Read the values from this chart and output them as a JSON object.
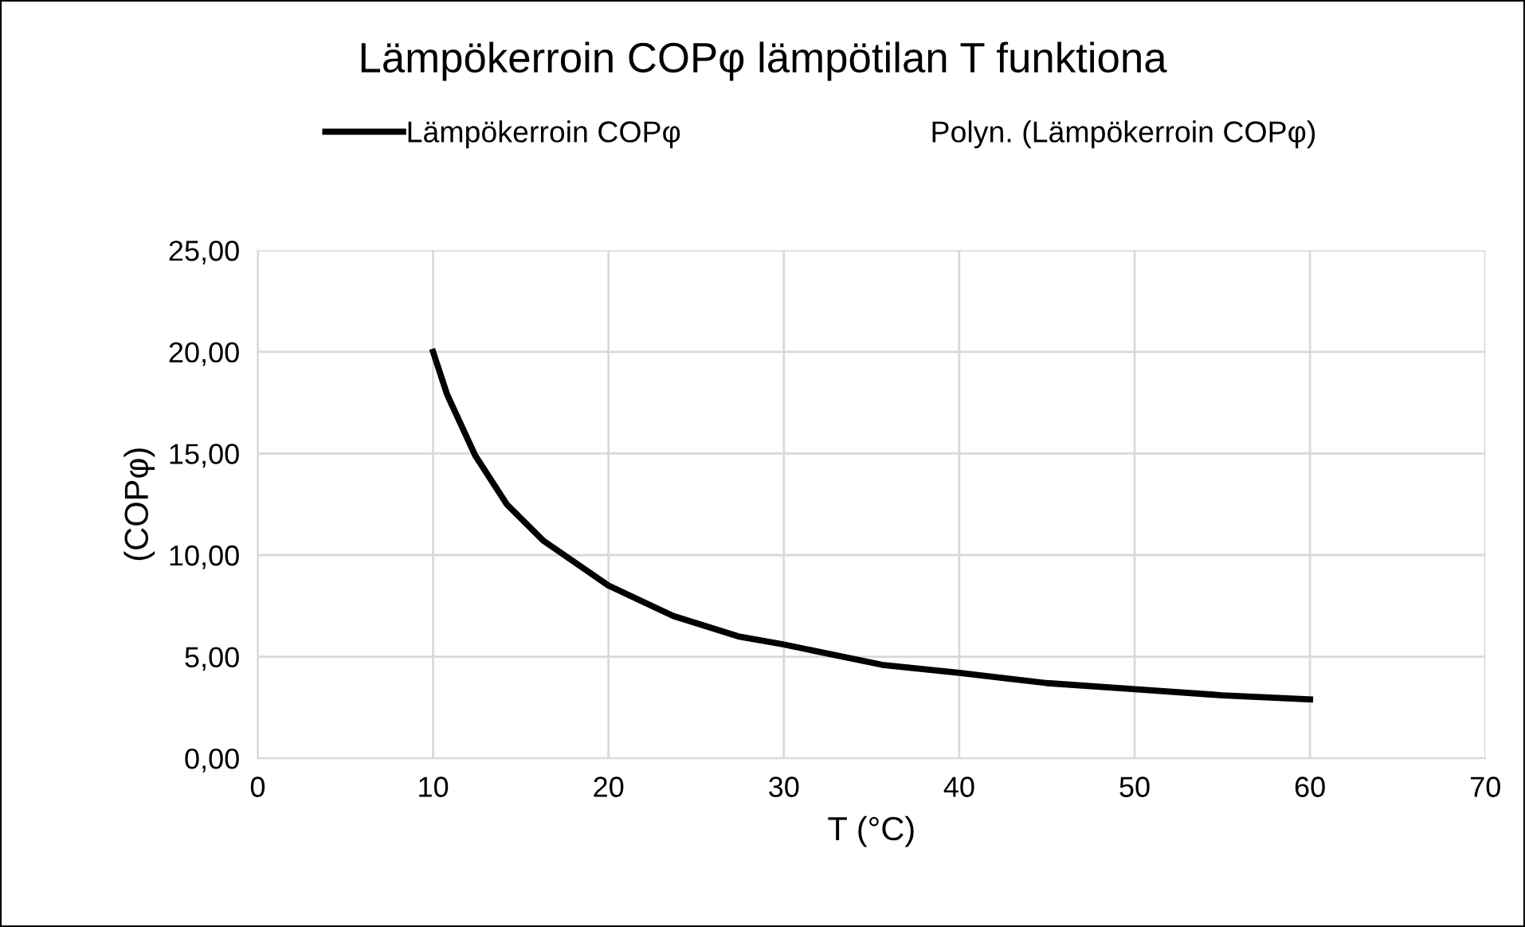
{
  "chart_data": {
    "type": "line",
    "title": "Lämpökerroin COPφ lämpötilan T funktiona",
    "xlabel": "T (°C)",
    "ylabel": "(COPφ)",
    "series": [
      {
        "name": "Lämpökerroin COPφ",
        "color": "#000000",
        "x": [
          10,
          10.8,
          12.4,
          14.2,
          16.3,
          20,
          23.7,
          27.4,
          30,
          35.6,
          40,
          45,
          50,
          55,
          60
        ],
        "values": [
          20,
          17.9,
          14.9,
          12.5,
          10.7,
          8.5,
          7.0,
          6.0,
          5.6,
          4.6,
          4.2,
          3.7,
          3.4,
          3.1,
          2.9
        ]
      }
    ],
    "annotations": [
      "Polyn. (Lämpökerroin COPφ)"
    ],
    "xlim": [
      0,
      70
    ],
    "xticks": [
      0,
      10,
      20,
      30,
      40,
      50,
      60,
      70
    ],
    "ylim": [
      0,
      25
    ],
    "yticks": [
      {
        "value": 0,
        "label": "0,00"
      },
      {
        "value": 5,
        "label": "5,00"
      },
      {
        "value": 10,
        "label": "10,00"
      },
      {
        "value": 15,
        "label": "15,00"
      },
      {
        "value": 20,
        "label": "20,00"
      },
      {
        "value": 25,
        "label": "25,00"
      }
    ],
    "grid": true,
    "legend": "top",
    "marker": "none",
    "line_style": "solid"
  }
}
